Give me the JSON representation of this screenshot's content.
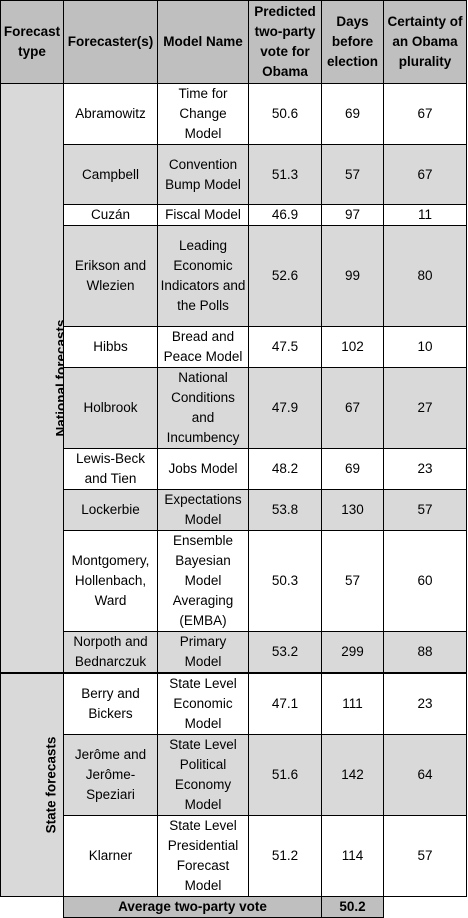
{
  "headers": [
    "Forecast type",
    "Forecaster(s)",
    "Model Name",
    "Predicted two-party vote for Obama",
    "Days before election",
    "Certainty of an Obama plurality"
  ],
  "groups": {
    "national": "National forecasts",
    "state": "State forecasts"
  },
  "rows": [
    {
      "forecaster": "Abramowitz",
      "model": "Time for Change Model",
      "vote": "50.6",
      "days": "69",
      "certainty": "67"
    },
    {
      "forecaster": "Campbell",
      "model": "Convention Bump Model",
      "vote": "51.3",
      "days": "57",
      "certainty": "67"
    },
    {
      "forecaster": "Cuzán",
      "model": "Fiscal Model",
      "vote": "46.9",
      "days": "97",
      "certainty": "11"
    },
    {
      "forecaster": "Erikson and Wlezien",
      "model": "Leading Economic Indicators and the Polls",
      "vote": "52.6",
      "days": "99",
      "certainty": "80"
    },
    {
      "forecaster": "Hibbs",
      "model": "Bread and Peace Model",
      "vote": "47.5",
      "days": "102",
      "certainty": "10"
    },
    {
      "forecaster": "Holbrook",
      "model": "National Conditions and Incumbency",
      "vote": "47.9",
      "days": "67",
      "certainty": "27"
    },
    {
      "forecaster": "Lewis-Beck and Tien",
      "model": "Jobs Model",
      "vote": "48.2",
      "days": "69",
      "certainty": "23"
    },
    {
      "forecaster": "Lockerbie",
      "model": "Expectations Model",
      "vote": "53.8",
      "days": "130",
      "certainty": "57"
    },
    {
      "forecaster": "Montgomery, Hollenbach, Ward",
      "model": "Ensemble Bayesian Model Averaging (EMBA)",
      "vote": "50.3",
      "days": "57",
      "certainty": "60"
    },
    {
      "forecaster": "Norpoth and Bednarczuk",
      "model": "Primary Model",
      "vote": "53.2",
      "days": "299",
      "certainty": "88"
    },
    {
      "forecaster": "Berry and Bickers",
      "model": "State Level Economic Model",
      "vote": "47.1",
      "days": "111",
      "certainty": "23"
    },
    {
      "forecaster": "Jerôme and Jerôme-Speziari",
      "model": "State Level Political Economy Model",
      "vote": "51.6",
      "days": "142",
      "certainty": "64"
    },
    {
      "forecaster": "Klarner",
      "model": "State Level Presidential Forecast Model",
      "vote": "51.2",
      "days": "114",
      "certainty": "57"
    }
  ],
  "average": {
    "label": "Average two-party vote",
    "value": "50.2"
  }
}
